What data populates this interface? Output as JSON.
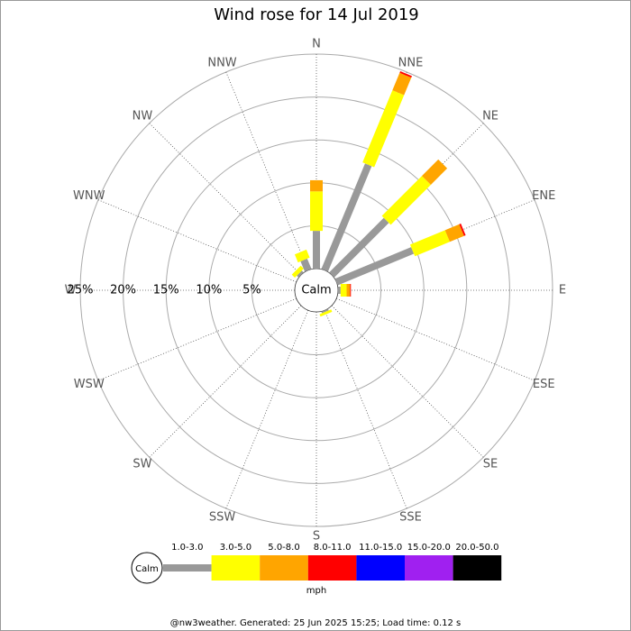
{
  "chart_data": {
    "type": "windrose",
    "title": "Wind rose for 14 Jul 2019",
    "directions": [
      "N",
      "NNE",
      "NE",
      "ENE",
      "E",
      "ESE",
      "SE",
      "SSE",
      "S",
      "SSW",
      "SW",
      "WSW",
      "W",
      "WNW",
      "NW",
      "NNW"
    ],
    "rlim": [
      0,
      25
    ],
    "rticks": [
      {
        "value": 5,
        "label": "5%"
      },
      {
        "value": 10,
        "label": "10%"
      },
      {
        "value": 15,
        "label": "15%"
      },
      {
        "value": 20,
        "label": "20%"
      },
      {
        "value": 25,
        "label": "25%"
      }
    ],
    "calm_label": "Calm",
    "unit": "mph",
    "series": [
      {
        "name": "1.0-3.0",
        "color": "#999999",
        "values": [
          4.4,
          13.3,
          9.0,
          9.6,
          0.3,
          0,
          0,
          0.2,
          0,
          0,
          0,
          0,
          0,
          0,
          0.3,
          1.3
        ]
      },
      {
        "name": "3.0-5.0",
        "color": "#ffff00",
        "values": [
          4.6,
          9.1,
          6.6,
          4.4,
          0.7,
          0,
          0,
          0.3,
          0,
          0,
          0,
          0,
          0,
          0,
          0.5,
          1.0
        ]
      },
      {
        "name": "5.0-8.0",
        "color": "#ffa500",
        "values": [
          1.3,
          2.2,
          2.7,
          1.8,
          0.4,
          0,
          0,
          0,
          0,
          0,
          0,
          0,
          0,
          0,
          0,
          0
        ]
      },
      {
        "name": "8.0-11.0",
        "color": "#ff0000",
        "values": [
          0,
          0.2,
          0,
          0.2,
          0.1,
          0,
          0,
          0,
          0,
          0,
          0,
          0,
          0,
          0,
          0,
          0
        ]
      },
      {
        "name": "11.0-15.0",
        "color": "#0000ff",
        "values": [
          0,
          0,
          0,
          0,
          0,
          0,
          0,
          0,
          0,
          0,
          0,
          0,
          0,
          0,
          0,
          0
        ]
      },
      {
        "name": "15.0-20.0",
        "color": "#a020f0",
        "values": [
          0,
          0,
          0,
          0,
          0,
          0,
          0,
          0,
          0,
          0,
          0,
          0,
          0,
          0,
          0,
          0
        ]
      },
      {
        "name": "20.0-50.0",
        "color": "#000000",
        "values": [
          0,
          0,
          0,
          0,
          0,
          0,
          0,
          0,
          0,
          0,
          0,
          0,
          0,
          0,
          0,
          0
        ]
      }
    ],
    "footer": "@nw3weather. Generated: 25 Jun 2025 15:25; Load time: 0.12 s"
  }
}
